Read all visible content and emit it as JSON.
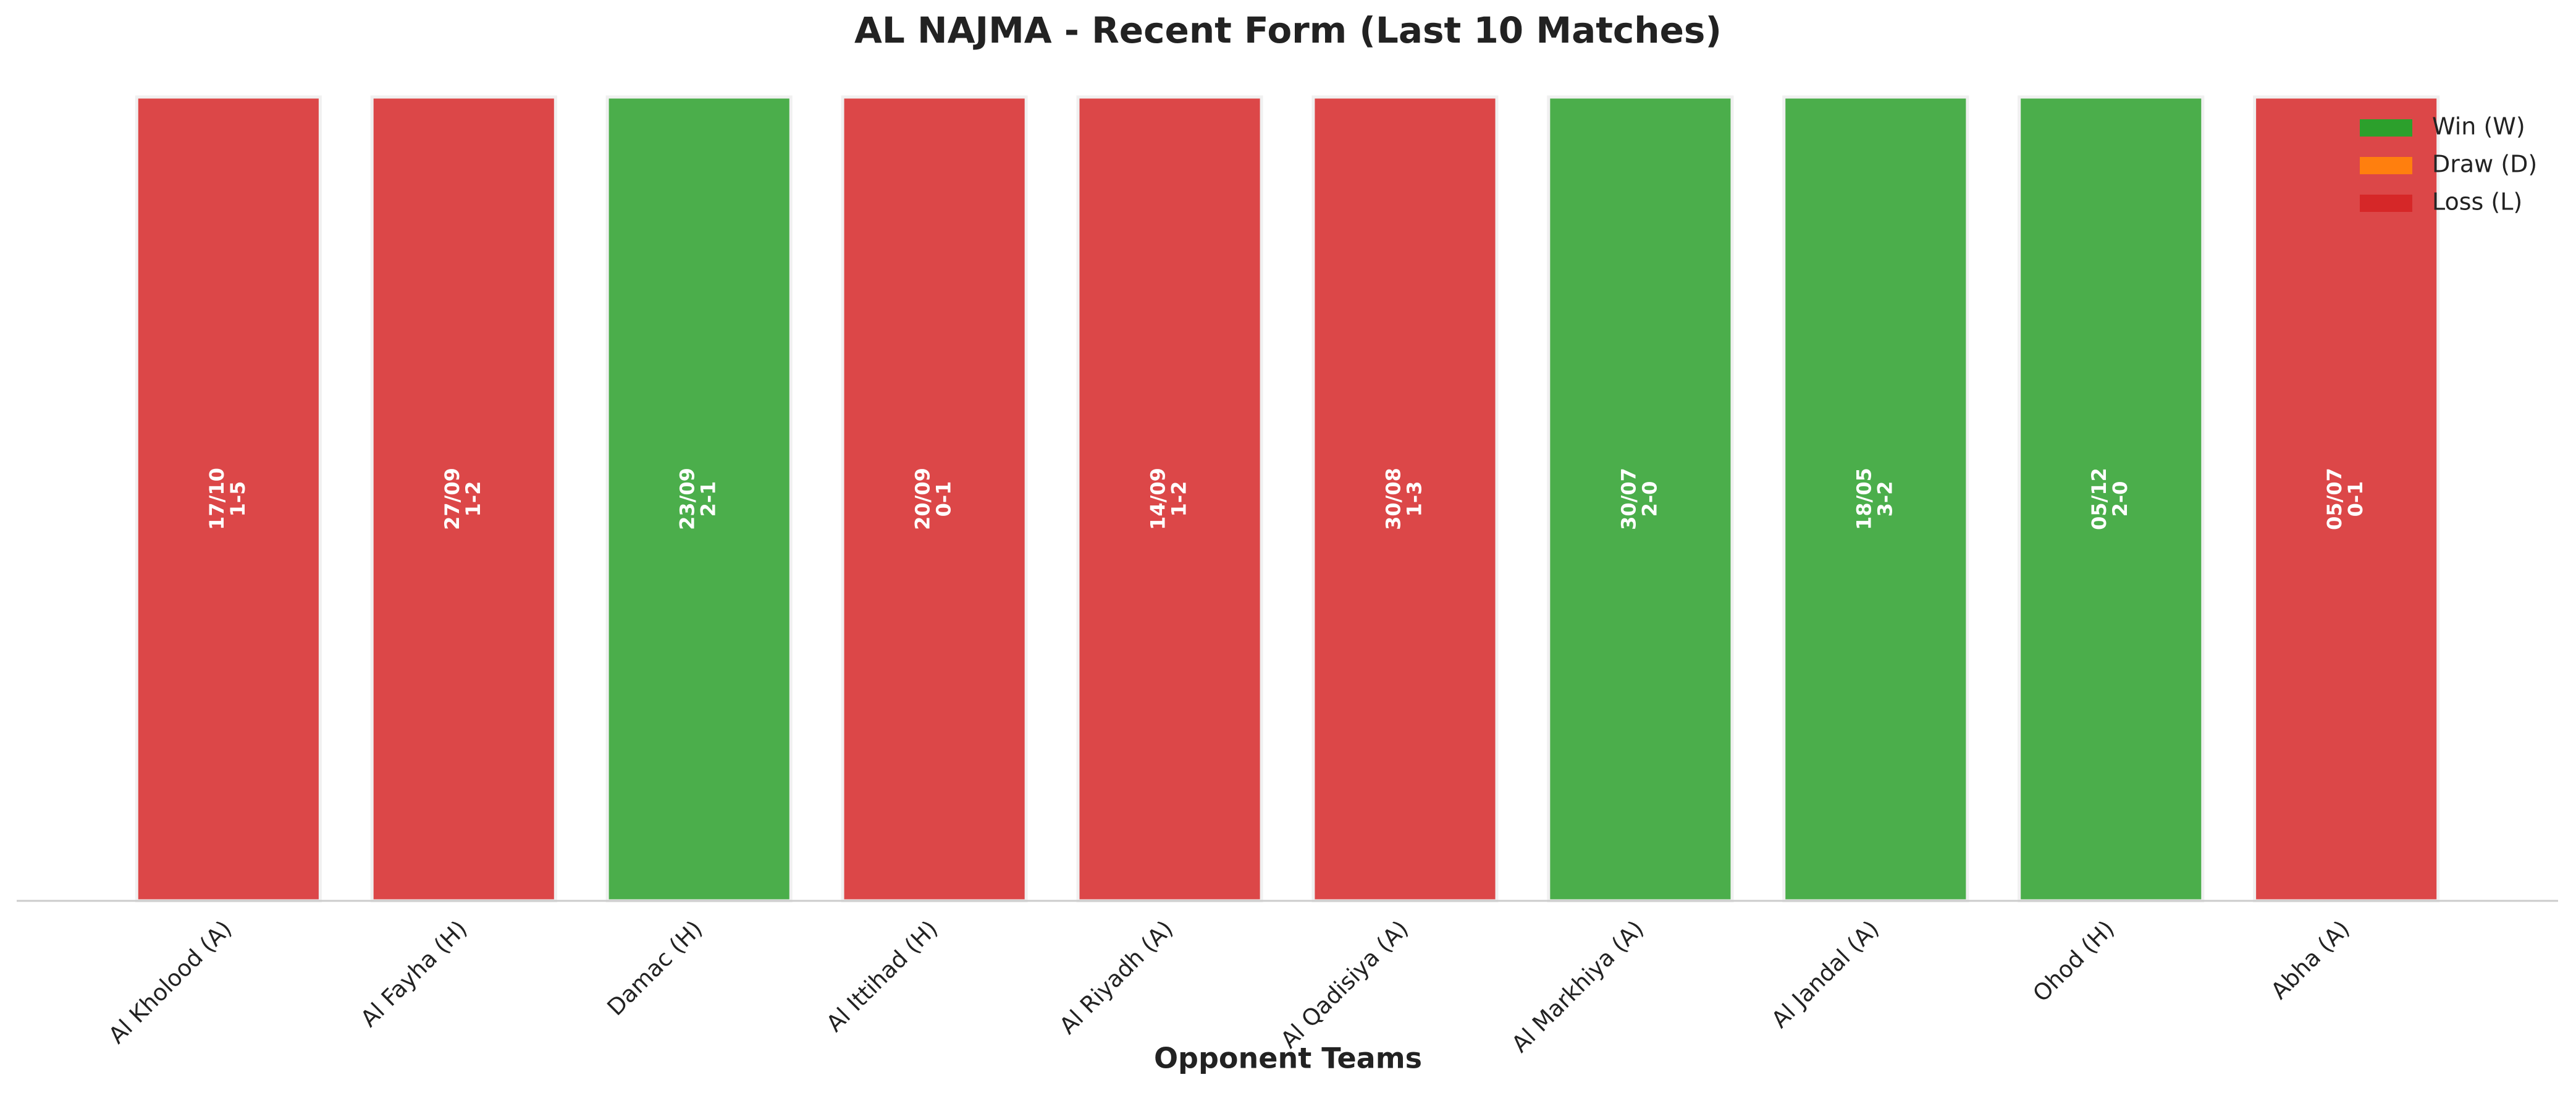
{
  "chart_data": {
    "type": "bar",
    "title": "AL NAJMA - Recent Form (Last 10 Matches)",
    "x_label": "Opponent Teams",
    "categories": [
      "Al Kholood (A)",
      "Al Fayha (H)",
      "Damac (H)",
      "Al Ittihad (H)",
      "Al Riyadh (A)",
      "Al Qadisiya (A)",
      "Al Markhiya (A)",
      "Al Jandal (A)",
      "Ohod (H)",
      "Abha (A)"
    ],
    "values": [
      1,
      1,
      1,
      1,
      1,
      1,
      1,
      1,
      1,
      1
    ],
    "dates": [
      "17/10",
      "27/09",
      "23/09",
      "20/09",
      "14/09",
      "30/08",
      "30/07",
      "18/05",
      "05/12",
      "05/07"
    ],
    "scores": [
      "1-5",
      "1-2",
      "2-1",
      "0-1",
      "1-2",
      "1-3",
      "2-0",
      "3-2",
      "2-0",
      "0-1"
    ],
    "colors": [
      "#d62728",
      "#d62728",
      "#2ca02c",
      "#d62728",
      "#d62728",
      "#d62728",
      "#2ca02c",
      "#2ca02c",
      "#2ca02c",
      "#d62728"
    ],
    "ylim": [
      0,
      1
    ],
    "legend": [
      {
        "name": "Win (W)",
        "color": "#2ca02c"
      },
      {
        "name": "Draw (D)",
        "color": "#ff7f0e"
      },
      {
        "name": "Loss (L)",
        "color": "#d62728"
      }
    ],
    "legend_loc": "upper right"
  }
}
